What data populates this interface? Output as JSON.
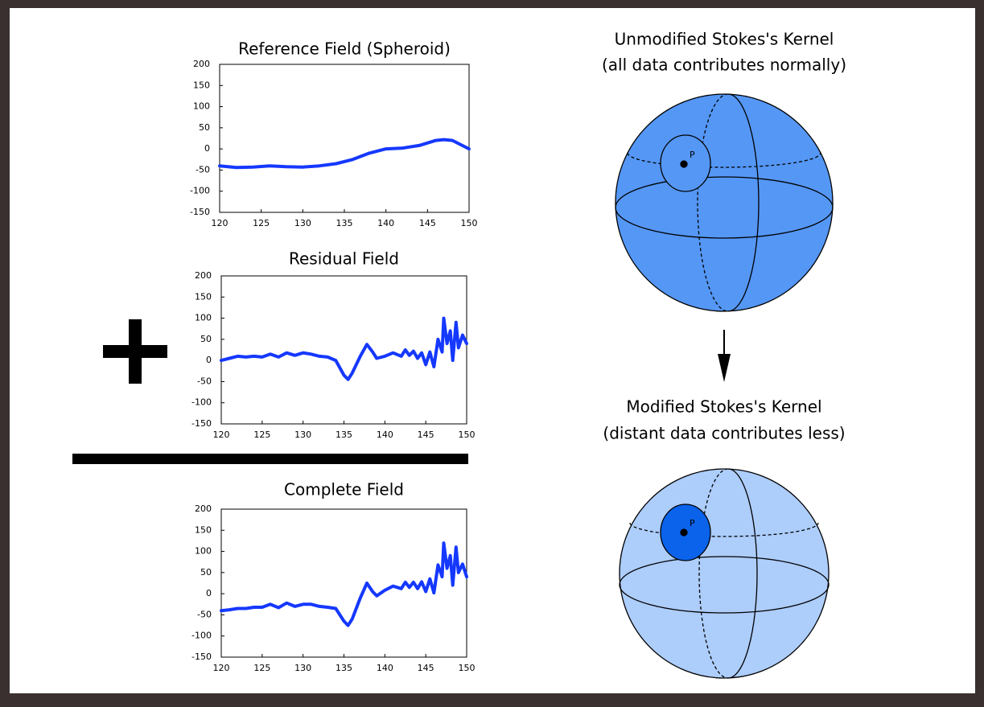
{
  "chart_data": [
    {
      "type": "line",
      "title": "Reference Field (Spheroid)",
      "color": "#1538ff",
      "x": [
        120,
        122,
        124,
        126,
        128,
        130,
        132,
        134,
        136,
        138,
        140,
        142,
        144,
        146,
        147,
        148,
        150
      ],
      "values": [
        -40,
        -44,
        -43,
        -40,
        -42,
        -43,
        -40,
        -35,
        -25,
        -10,
        0,
        2,
        8,
        20,
        22,
        20,
        0
      ],
      "xlim": [
        120,
        150
      ],
      "ylim": [
        -150,
        200
      ],
      "xticks": [
        120,
        125,
        130,
        135,
        140,
        145,
        150
      ],
      "yticks": [
        -150,
        -100,
        -50,
        0,
        50,
        100,
        150,
        200
      ],
      "grid": false
    },
    {
      "type": "line",
      "title": "Residual Field",
      "color": "#1538ff",
      "x": [
        120,
        121,
        122,
        123,
        124,
        125,
        126,
        127,
        128,
        129,
        130,
        131,
        132,
        133,
        134,
        135,
        135.5,
        136,
        137,
        137.8,
        138.5,
        139,
        140,
        141,
        142,
        142.5,
        143,
        143.5,
        144,
        144.5,
        145,
        145.5,
        146,
        146.5,
        147,
        147.2,
        147.6,
        148,
        148.3,
        148.7,
        149,
        149.5,
        150
      ],
      "values": [
        0,
        5,
        10,
        8,
        10,
        8,
        15,
        8,
        18,
        12,
        18,
        15,
        10,
        8,
        0,
        -35,
        -45,
        -30,
        10,
        38,
        20,
        5,
        10,
        18,
        10,
        25,
        12,
        22,
        5,
        18,
        -10,
        20,
        -15,
        50,
        20,
        100,
        40,
        70,
        0,
        90,
        30,
        60,
        40
      ],
      "xlim": [
        120,
        150
      ],
      "ylim": [
        -150,
        200
      ],
      "xticks": [
        120,
        125,
        130,
        135,
        140,
        145,
        150
      ],
      "yticks": [
        -150,
        -100,
        -50,
        0,
        50,
        100,
        150,
        200
      ],
      "grid": false
    },
    {
      "type": "line",
      "title": "Complete Field",
      "color": "#1538ff",
      "x": [
        120,
        121,
        122,
        123,
        124,
        125,
        126,
        127,
        128,
        129,
        130,
        131,
        132,
        133,
        134,
        135,
        135.5,
        136,
        137,
        137.8,
        138.5,
        139,
        140,
        141,
        142,
        142.5,
        143,
        143.5,
        144,
        144.5,
        145,
        145.5,
        146,
        146.5,
        147,
        147.2,
        147.6,
        148,
        148.3,
        148.7,
        149,
        149.5,
        150
      ],
      "values": [
        -40,
        -38,
        -35,
        -35,
        -32,
        -32,
        -25,
        -33,
        -22,
        -30,
        -25,
        -25,
        -30,
        -32,
        -35,
        -65,
        -75,
        -60,
        -10,
        25,
        5,
        -5,
        8,
        18,
        12,
        27,
        15,
        27,
        12,
        28,
        5,
        35,
        2,
        68,
        40,
        120,
        60,
        90,
        20,
        110,
        50,
        70,
        40
      ],
      "xlim": [
        120,
        150
      ],
      "ylim": [
        -150,
        200
      ],
      "xticks": [
        120,
        125,
        130,
        135,
        140,
        145,
        150
      ],
      "yticks": [
        -150,
        -100,
        -50,
        0,
        50,
        100,
        150,
        200
      ],
      "grid": false
    }
  ],
  "diagram": {
    "top": {
      "title": "Unmodified Stokes's Kernel",
      "subtitle": "(all data contributes normally)",
      "point": "P"
    },
    "bottom": {
      "title": "Modified Stokes's Kernel",
      "subtitle": "(distant data contributes less)",
      "point": "P"
    }
  }
}
